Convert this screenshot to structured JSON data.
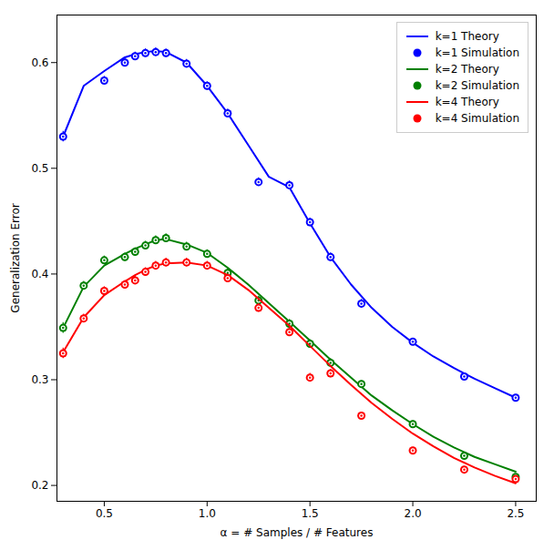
{
  "chart_data": {
    "type": "line",
    "title": "",
    "xlabel": "α = # Samples / # Features",
    "ylabel": "Generalization Error",
    "xlim": [
      0.27,
      2.6
    ],
    "ylim": [
      0.185,
      0.645
    ],
    "xticks": [
      0.5,
      {
        "value": 1.0,
        "label": "1.0"
      },
      1.5,
      {
        "value": 2.0,
        "label": "2.0"
      },
      2.5
    ],
    "yticks": [
      0.2,
      0.3,
      0.4,
      0.5,
      0.6
    ],
    "grid": false,
    "legend": "upper right",
    "series": [
      {
        "name": "k=1 Theory",
        "type": "line",
        "line_style": "solid",
        "color": "#0000FF",
        "x": [
          0.3,
          0.4,
          0.5,
          0.6,
          0.65,
          0.7,
          0.75,
          0.8,
          0.9,
          1.0,
          1.1,
          1.2,
          1.3,
          1.4,
          1.5,
          1.6,
          1.7,
          1.8,
          1.9,
          2.0,
          2.1,
          2.2,
          2.3,
          2.4,
          2.5
        ],
        "values": [
          0.53,
          0.578,
          0.592,
          0.605,
          0.608,
          0.61,
          0.611,
          0.61,
          0.6,
          0.578,
          0.552,
          0.522,
          0.492,
          0.482,
          0.448,
          0.416,
          0.39,
          0.368,
          0.35,
          0.335,
          0.322,
          0.311,
          0.301,
          0.292,
          0.283
        ]
      },
      {
        "name": "k=1 Simulation",
        "type": "scatter",
        "marker": "circle",
        "color": "#0000FF",
        "x": [
          0.3,
          0.5,
          0.6,
          0.65,
          0.7,
          0.75,
          0.8,
          0.9,
          1.0,
          1.1,
          1.25,
          1.4,
          1.5,
          1.6,
          1.75,
          2.0,
          2.25,
          2.5
        ],
        "values": [
          0.53,
          0.583,
          0.6,
          0.606,
          0.609,
          0.61,
          0.609,
          0.599,
          0.578,
          0.552,
          0.487,
          0.484,
          0.449,
          0.416,
          0.372,
          0.336,
          0.303,
          0.283
        ],
        "yerr": [
          0.005,
          0.004,
          0.004,
          0.004,
          0.004,
          0.004,
          0.004,
          0.004,
          0.004,
          0.004,
          0.004,
          0.004,
          0.004,
          0.004,
          0.004,
          0.003,
          0.003,
          0.003
        ]
      },
      {
        "name": "k=2 Theory",
        "type": "line",
        "line_style": "solid",
        "color": "#008000",
        "x": [
          0.3,
          0.4,
          0.5,
          0.6,
          0.65,
          0.7,
          0.75,
          0.8,
          0.9,
          1.0,
          1.1,
          1.2,
          1.4,
          1.5,
          1.6,
          1.7,
          1.8,
          1.9,
          2.0,
          2.1,
          2.2,
          2.3,
          2.4,
          2.5
        ],
        "values": [
          0.349,
          0.388,
          0.408,
          0.419,
          0.424,
          0.428,
          0.432,
          0.433,
          0.428,
          0.42,
          0.406,
          0.39,
          0.355,
          0.337,
          0.319,
          0.302,
          0.285,
          0.271,
          0.258,
          0.246,
          0.236,
          0.227,
          0.22,
          0.213
        ]
      },
      {
        "name": "k=2 Simulation",
        "type": "scatter",
        "marker": "circle",
        "color": "#008000",
        "x": [
          0.3,
          0.4,
          0.5,
          0.6,
          0.65,
          0.7,
          0.75,
          0.8,
          0.9,
          1.0,
          1.1,
          1.25,
          1.4,
          1.5,
          1.6,
          1.75,
          2.0,
          2.25,
          2.5
        ],
        "values": [
          0.349,
          0.389,
          0.413,
          0.416,
          0.421,
          0.427,
          0.432,
          0.434,
          0.426,
          0.419,
          0.401,
          0.375,
          0.353,
          0.334,
          0.316,
          0.296,
          0.258,
          0.228,
          0.208
        ],
        "yerr": [
          0.005,
          0.004,
          0.004,
          0.004,
          0.004,
          0.004,
          0.004,
          0.004,
          0.004,
          0.004,
          0.004,
          0.004,
          0.004,
          0.004,
          0.004,
          0.003,
          0.003,
          0.003,
          0.002
        ]
      },
      {
        "name": "k=4 Theory",
        "type": "line",
        "line_style": "solid",
        "color": "#FF0000",
        "x": [
          0.3,
          0.4,
          0.5,
          0.6,
          0.65,
          0.7,
          0.75,
          0.8,
          0.9,
          1.0,
          1.1,
          1.2,
          1.4,
          1.5,
          1.6,
          1.7,
          1.8,
          1.9,
          2.0,
          2.1,
          2.2,
          2.3,
          2.4,
          2.5
        ],
        "values": [
          0.326,
          0.359,
          0.38,
          0.393,
          0.399,
          0.404,
          0.408,
          0.41,
          0.411,
          0.408,
          0.399,
          0.385,
          0.351,
          0.332,
          0.313,
          0.295,
          0.278,
          0.263,
          0.249,
          0.237,
          0.226,
          0.217,
          0.209,
          0.202
        ]
      },
      {
        "name": "k=4 Simulation",
        "type": "scatter",
        "marker": "circle",
        "color": "#FF0000",
        "x": [
          0.3,
          0.4,
          0.5,
          0.6,
          0.65,
          0.7,
          0.75,
          0.8,
          0.9,
          1.0,
          1.1,
          1.25,
          1.4,
          1.5,
          1.6,
          1.75,
          2.0,
          2.25,
          2.5
        ],
        "values": [
          0.325,
          0.358,
          0.384,
          0.39,
          0.394,
          0.402,
          0.408,
          0.411,
          0.411,
          0.408,
          0.396,
          0.368,
          0.345,
          0.302,
          0.306,
          0.266,
          0.233,
          0.215,
          0.206
        ],
        "yerr": [
          0.005,
          0.004,
          0.004,
          0.004,
          0.004,
          0.004,
          0.004,
          0.004,
          0.004,
          0.004,
          0.004,
          0.004,
          0.004,
          0.004,
          0.004,
          0.003,
          0.003,
          0.003,
          0.002
        ]
      }
    ]
  }
}
